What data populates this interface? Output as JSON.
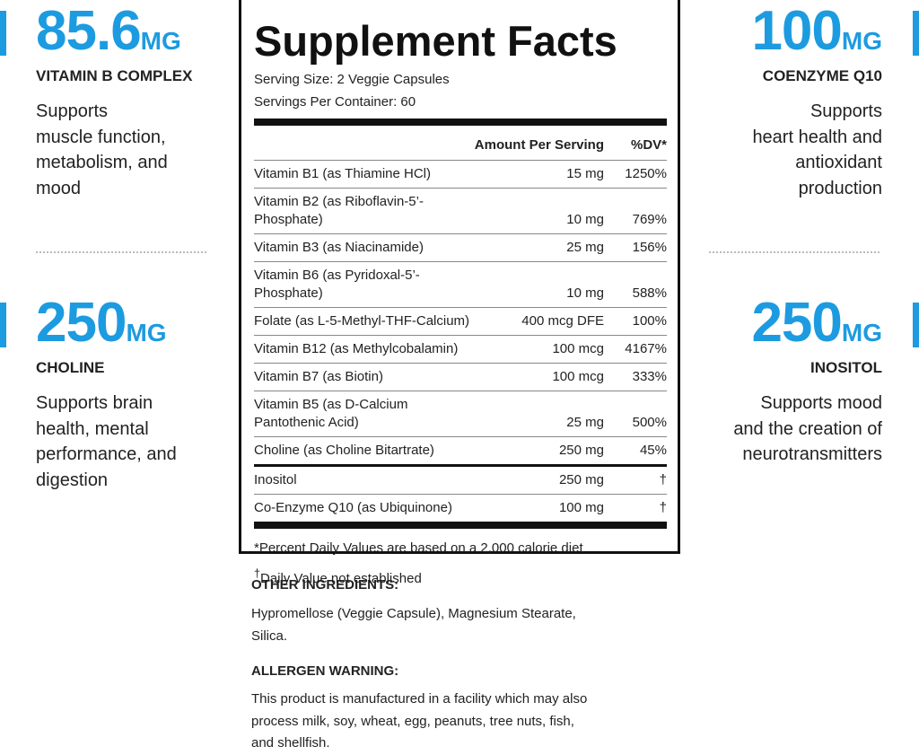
{
  "left": [
    {
      "amount": "85.6",
      "unit": "MG",
      "name": "VITAMIN B COMPLEX",
      "description": [
        "Supports",
        "muscle function,",
        "metabolism, and",
        "mood"
      ]
    },
    {
      "amount": "250",
      "unit": "MG",
      "name": "CHOLINE",
      "description": [
        "Supports brain",
        "health, mental",
        "performance, and",
        "digestion"
      ]
    }
  ],
  "right": [
    {
      "amount": "100",
      "unit": "MG",
      "name": "COENZYME Q10",
      "description": [
        "Supports",
        "heart health and",
        "antioxidant",
        "production"
      ]
    },
    {
      "amount": "250",
      "unit": "MG",
      "name": "INOSITOL",
      "description": [
        "Supports mood",
        "and the creation of",
        "neurotransmitters"
      ]
    }
  ],
  "facts": {
    "title": "Supplement Facts",
    "serving_size": "Serving Size: 2 Veggie Capsules",
    "servings_per_container": "Servings Per Container: 60",
    "header": [
      "Amount Per Serving",
      "%DV*"
    ],
    "rows": [
      {
        "name": [
          "Vitamin B1 (as Thiamine HCl)"
        ],
        "amount": "15 mg",
        "dv": "1250%"
      },
      {
        "name": [
          "Vitamin B2 (as Riboflavin-5’-Phosphate)"
        ],
        "amount": "10 mg",
        "dv": "769%"
      },
      {
        "name": [
          "Vitamin B3 (as Niacinamide)"
        ],
        "amount": "25 mg",
        "dv": "156%"
      },
      {
        "name": [
          "Vitamin B6 (as Pyridoxal-5’-Phosphate)"
        ],
        "amount": "10 mg",
        "dv": "588%"
      },
      {
        "name": [
          "Folate (as L-5-Methyl-THF-Calcium)"
        ],
        "amount": "400 mcg DFE",
        "dv": "100%"
      },
      {
        "name": [
          "Vitamin B12 (as Methylcobalamin)"
        ],
        "amount": "100 mcg",
        "dv": "4167%"
      },
      {
        "name": [
          "Vitamin B7 (as Biotin)"
        ],
        "amount": "100 mcg",
        "dv": "333%"
      },
      {
        "name": [
          "Vitamin B5 (as D-Calcium",
          "Pantothenic Acid)"
        ],
        "amount": "25 mg",
        "dv": "500%"
      },
      {
        "name": [
          "Choline (as Choline Bitartrate)"
        ],
        "amount": "250 mg",
        "dv": "45%"
      },
      {
        "name": [
          "Inositol"
        ],
        "amount": "250 mg",
        "dv": "†"
      },
      {
        "name": [
          "Co-Enzyme Q10 (as Ubiquinone)"
        ],
        "amount": "100 mg",
        "dv": "†"
      }
    ],
    "footnote": "*Percent Daily Values are based on a 2,000 calorie diet",
    "footnote2": {
      "symbol": "†",
      "text": "Daily Value not established"
    }
  },
  "other_ingredients": {
    "heading": "OTHER INGREDIENTS:",
    "lines": [
      "Hypromellose (Veggie Capsule), Magnesium Stearate,",
      "Silica."
    ]
  },
  "allergen_warning": {
    "heading": "ALLERGEN WARNING:",
    "lines": [
      "This product is manufactured in a facility which may also",
      "process milk, soy, wheat, egg, peanuts, tree nuts, fish,",
      "and shellfish."
    ]
  }
}
